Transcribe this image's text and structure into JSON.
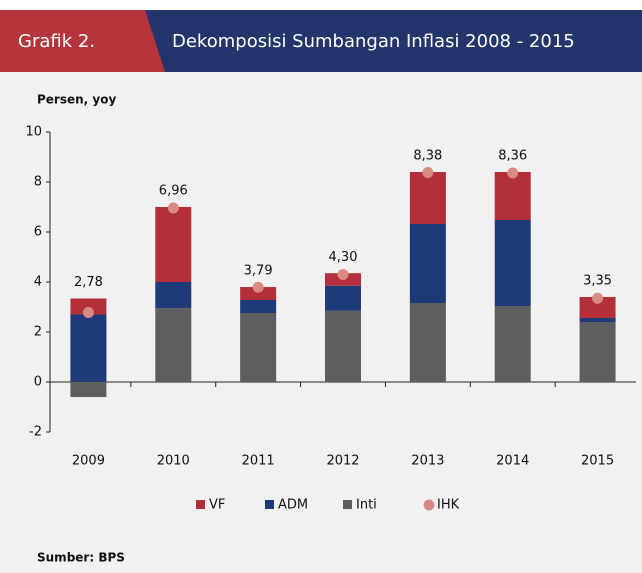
{
  "chart_data": {
    "type": "bar",
    "figure_label": "Grafik 2.",
    "title": "Dekomposisi Sumbangan Inflasi 2008 - 2015",
    "ylabel": "Persen, yoy",
    "source": "Sumber: BPS",
    "categories": [
      "2009",
      "2010",
      "2011",
      "2012",
      "2013",
      "2014",
      "2015"
    ],
    "series": [
      {
        "name": "VF",
        "color": "#b3303b",
        "values": [
          0.64,
          3.0,
          0.52,
          0.5,
          2.08,
          1.92,
          0.84
        ]
      },
      {
        "name": "ADM",
        "color": "#1f3a78",
        "values": [
          2.7,
          1.05,
          0.52,
          1.0,
          3.16,
          3.44,
          0.16
        ]
      },
      {
        "name": "Inti",
        "color": "#5e5e5e",
        "values": [
          -0.6,
          2.95,
          2.76,
          2.85,
          3.16,
          3.04,
          2.4
        ]
      },
      {
        "name": "IHK",
        "color": "#d98a82",
        "type": "scatter",
        "values": [
          2.78,
          6.96,
          3.79,
          4.3,
          8.38,
          8.36,
          3.35
        ],
        "value_labels": [
          "2,78",
          "6,96",
          "3,79",
          "4,30",
          "8,38",
          "8,36",
          "3,35"
        ]
      }
    ],
    "ylim": [
      -2,
      10
    ],
    "yticks": [
      -2,
      0,
      2,
      4,
      6,
      8,
      10
    ],
    "legend": "bottom"
  }
}
